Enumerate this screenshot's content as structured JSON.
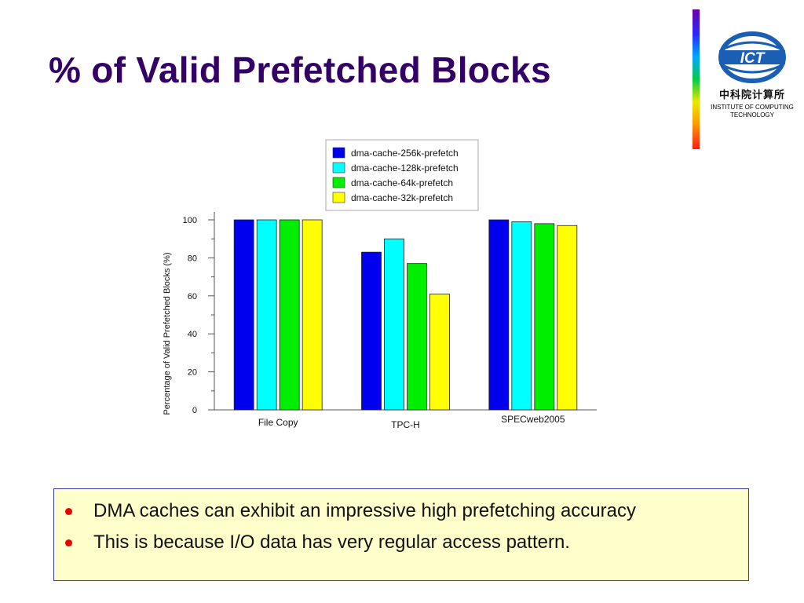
{
  "slide": {
    "title": "% of Valid Prefetched Blocks",
    "logo": {
      "text_cn": "中科院计算所",
      "text_en": "INSTITUTE OF COMPUTING TECHNOLOGY",
      "emblem_text": "ICT"
    }
  },
  "colors": {
    "title": "#330066",
    "series": [
      "#0000ee",
      "#00ffff",
      "#00ee00",
      "#ffff00"
    ],
    "bullet": "#ee0000",
    "note_bg": "#ffffcc"
  },
  "chart_data": {
    "type": "bar",
    "categories": [
      "File Copy",
      "TPC-H",
      "SPECweb2005"
    ],
    "series": [
      {
        "name": "dma-cache-256k-prefetch",
        "values": [
          100,
          83,
          100
        ]
      },
      {
        "name": "dma-cache-128k-prefetch",
        "values": [
          100,
          90,
          99
        ]
      },
      {
        "name": "dma-cache-64k-prefetch",
        "values": [
          100,
          77,
          98
        ]
      },
      {
        "name": "dma-cache-32k-prefetch",
        "values": [
          100,
          61,
          97
        ]
      }
    ],
    "ylabel": "Percentage of  Valid Prefetched Blocks (%)",
    "xlabel": "",
    "ylim": [
      0,
      100
    ],
    "yticks": [
      0,
      20,
      40,
      60,
      80,
      100
    ],
    "legend_position": "top",
    "grid": false
  },
  "notes": {
    "items": [
      "DMA caches can exhibit an impressive high prefetching accuracy",
      "This is because I/O data has very regular access pattern."
    ]
  }
}
